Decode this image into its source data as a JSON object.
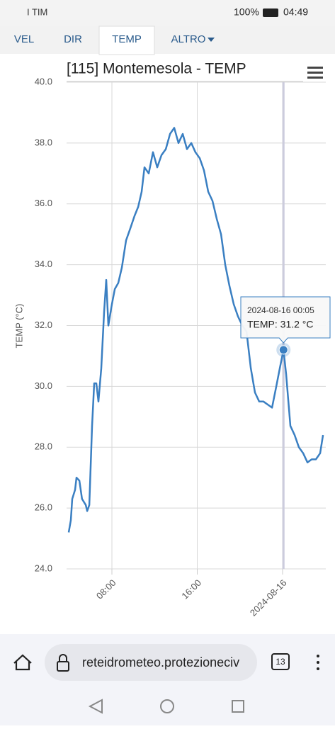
{
  "status_bar": {
    "carrier": "I TIM",
    "battery": "100%",
    "time": "04:49"
  },
  "tabs": [
    "VEL",
    "DIR",
    "TEMP",
    "ALTRO"
  ],
  "chart_data": {
    "type": "line",
    "title": "[115] Montemesola - TEMP",
    "y_label": "TEMP (°C)",
    "x": [
      3.95,
      4.15,
      4.28,
      4.55,
      4.68,
      4.95,
      5.2,
      5.55,
      5.68,
      5.88,
      6.14,
      6.34,
      6.54,
      6.74,
      7.0,
      7.27,
      7.47,
      7.67,
      8.0,
      8.27,
      8.6,
      8.93,
      9.33,
      9.73,
      10.12,
      10.46,
      10.79,
      11.05,
      11.45,
      11.85,
      12.25,
      12.65,
      13.05,
      13.45,
      13.84,
      14.24,
      14.64,
      15.04,
      15.44,
      15.83,
      16.23,
      16.63,
      17.03,
      17.43,
      17.83,
      18.23,
      18.62,
      19.02,
      19.42,
      19.82,
      20.22,
      20.62,
      21.02,
      21.41,
      21.81,
      22.21,
      22.61,
      23.01,
      23.41,
      23.74,
      24.083,
      24.33,
      24.73,
      25.13,
      25.53,
      25.93,
      26.33,
      26.73,
      27.12,
      27.52,
      27.79
    ],
    "series": [
      {
        "color": "#3a7fc2",
        "values": [
          25.2,
          25.6,
          26.3,
          26.6,
          27.0,
          26.9,
          26.3,
          26.1,
          25.9,
          26.1,
          28.7,
          30.1,
          30.1,
          29.5,
          30.6,
          32.45,
          33.5,
          32.0,
          32.7,
          33.2,
          33.4,
          33.9,
          34.8,
          35.2,
          35.6,
          35.9,
          36.4,
          37.2,
          37.0,
          37.7,
          37.2,
          37.6,
          37.8,
          38.3,
          38.5,
          38.0,
          38.3,
          37.8,
          38.0,
          37.7,
          37.5,
          37.1,
          36.4,
          36.1,
          35.5,
          35.0,
          34.0,
          33.3,
          32.7,
          32.3,
          32.0,
          31.8,
          30.6,
          29.8,
          29.5,
          29.5,
          29.4,
          29.3,
          30.0,
          30.6,
          31.2,
          30.4,
          28.7,
          28.4,
          28.0,
          27.8,
          27.5,
          27.6,
          27.6,
          27.8,
          28.4
        ]
      }
    ],
    "xlim": [
      3.75,
      28.05
    ],
    "xticks": [
      {
        "value": 8,
        "label": "08:00"
      },
      {
        "value": 16,
        "label": "16:00"
      },
      {
        "value": 24,
        "label": "2024-08-16"
      }
    ],
    "ylim": [
      24,
      40
    ],
    "yticks": [
      {
        "value": 24,
        "label": "24.0"
      },
      {
        "value": 26,
        "label": "26.0"
      },
      {
        "value": 28,
        "label": "28.0"
      },
      {
        "value": 30,
        "label": "30.0"
      },
      {
        "value": 32,
        "label": "32.0"
      },
      {
        "value": 34,
        "label": "34.0"
      },
      {
        "value": 36,
        "label": "36.0"
      },
      {
        "value": 38,
        "label": "38.0"
      },
      {
        "value": 40,
        "label": "40.0"
      }
    ],
    "grid": true,
    "tooltip": {
      "x": 24.083,
      "title": "2024-08-16 00:05",
      "text": "TEMP: 31.2 °C"
    }
  },
  "browser": {
    "url": "reteidrometeo.protezioneciv",
    "tab_count": "13"
  }
}
